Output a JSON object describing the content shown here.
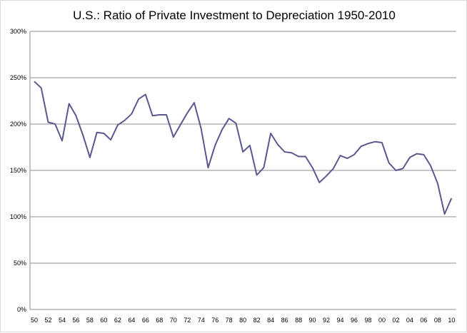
{
  "chart_data": {
    "type": "line",
    "title": "U.S.: Ratio of Private Investment to Depreciation 1950-2010",
    "xlabel": "",
    "ylabel": "",
    "ylim": [
      0,
      300
    ],
    "y_ticks": [
      "0%",
      "50%",
      "100%",
      "150%",
      "200%",
      "250%",
      "300%"
    ],
    "x_tick_labels": [
      "50",
      "52",
      "54",
      "56",
      "58",
      "60",
      "62",
      "64",
      "66",
      "68",
      "70",
      "72",
      "74",
      "76",
      "78",
      "80",
      "82",
      "84",
      "86",
      "88",
      "90",
      "92",
      "94",
      "96",
      "98",
      "00",
      "02",
      "04",
      "06",
      "08",
      "10"
    ],
    "grid": "horizontal",
    "legend": "none",
    "line_color": "#5b5890",
    "x": [
      1950,
      1951,
      1952,
      1953,
      1954,
      1955,
      1956,
      1957,
      1958,
      1959,
      1960,
      1961,
      1962,
      1963,
      1964,
      1965,
      1966,
      1967,
      1968,
      1969,
      1970,
      1971,
      1972,
      1973,
      1974,
      1975,
      1976,
      1977,
      1978,
      1979,
      1980,
      1981,
      1982,
      1983,
      1984,
      1985,
      1986,
      1987,
      1988,
      1989,
      1990,
      1991,
      1992,
      1993,
      1994,
      1995,
      1996,
      1997,
      1998,
      1999,
      2000,
      2001,
      2002,
      2003,
      2004,
      2005,
      2006,
      2007,
      2008,
      2009,
      2010
    ],
    "values": [
      246,
      239,
      202,
      200,
      182,
      222,
      209,
      188,
      164,
      191,
      190,
      183,
      199,
      204,
      211,
      227,
      232,
      209,
      210,
      210,
      186,
      199,
      212,
      223,
      195,
      153,
      177,
      194,
      206,
      201,
      170,
      177,
      145,
      153,
      190,
      178,
      170,
      169,
      165,
      165,
      153,
      137,
      144,
      152,
      166,
      163,
      167,
      176,
      179,
      181,
      180,
      158,
      150,
      152,
      164,
      168,
      167,
      155,
      136,
      103,
      120
    ]
  }
}
